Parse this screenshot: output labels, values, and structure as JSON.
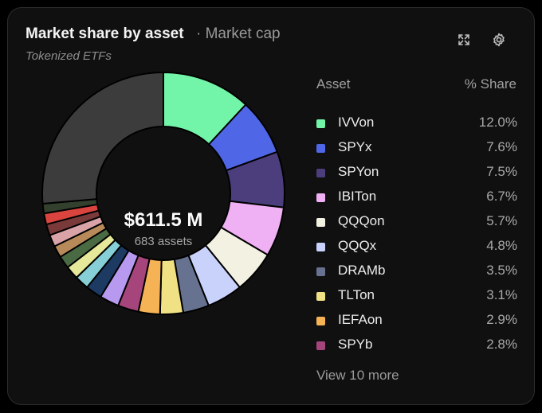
{
  "header": {
    "title": "Market share by asset",
    "subtitle": "· Market cap",
    "tag": "Tokenized ETFs"
  },
  "icons": {
    "expand": "expand-icon",
    "settings": "gear-icon"
  },
  "center": {
    "value": "$611.5 M",
    "label": "683 assets"
  },
  "table": {
    "asset_header": "Asset",
    "share_header": "% Share"
  },
  "more_link": "View 10 more",
  "chart_data": {
    "type": "pie",
    "donut": true,
    "categories": [
      "IVVon",
      "SPYx",
      "SPYon",
      "IBITon",
      "QQQon",
      "QQQx",
      "DRAMb",
      "TLTon",
      "IEFAon",
      "SPYb"
    ],
    "values": [
      12.0,
      7.6,
      7.5,
      6.7,
      5.7,
      4.8,
      3.5,
      3.1,
      2.9,
      2.8
    ],
    "value_labels": [
      "12.0%",
      "7.6%",
      "7.5%",
      "6.7%",
      "5.7%",
      "4.8%",
      "3.5%",
      "3.1%",
      "2.9%",
      "2.8%"
    ],
    "colors": [
      "#72f5a8",
      "#4f66e6",
      "#4c3e7c",
      "#f0b0f4",
      "#f3f1e2",
      "#c9d2fb",
      "#66728f",
      "#f0e284",
      "#f5b356",
      "#a6457c"
    ],
    "additional_slices": [
      {
        "value": 2.6,
        "color": "#b79af0"
      },
      {
        "value": 2.2,
        "color": "#1c3a62"
      },
      {
        "value": 1.9,
        "color": "#86cfd6"
      },
      {
        "value": 1.8,
        "color": "#e6e89a"
      },
      {
        "value": 1.7,
        "color": "#4a6a44"
      },
      {
        "value": 1.6,
        "color": "#b88a5a"
      },
      {
        "value": 1.6,
        "color": "#d9a3a8"
      },
      {
        "value": 1.5,
        "color": "#7a3a3a"
      },
      {
        "value": 1.5,
        "color": "#d9453e"
      },
      {
        "value": 1.3,
        "color": "#33402e"
      },
      {
        "value": 26.6,
        "color": "#3c3c3c"
      }
    ]
  }
}
